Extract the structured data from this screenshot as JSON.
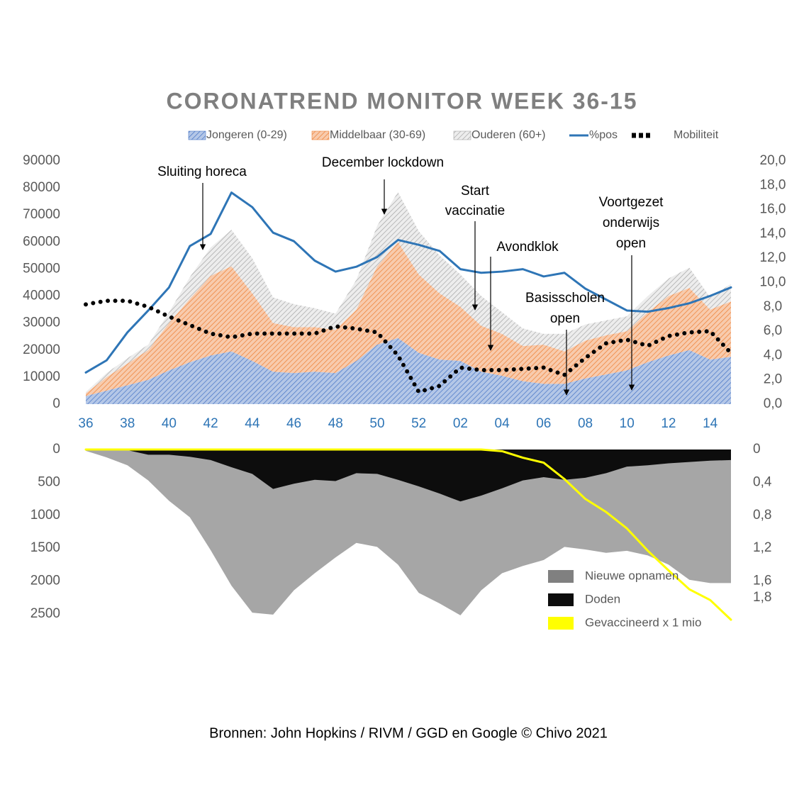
{
  "chart_data": [
    {
      "type": "area",
      "stacked": true,
      "title": "CORONATREND MONITOR WEEK 36-15",
      "source": "Bronnen: John Hopkins / RIVM / GGD en Google © Chivo 2021",
      "categories": [
        "36",
        null,
        "38",
        null,
        "40",
        null,
        "42",
        null,
        "44",
        null,
        "46",
        null,
        "48",
        null,
        "50",
        null,
        "52",
        null,
        "02",
        null,
        "04",
        null,
        "06",
        null,
        "08",
        null,
        "10",
        null,
        "12",
        null,
        "14",
        null
      ],
      "ylim": [
        0,
        90000
      ],
      "yticks": [
        0,
        10000,
        20000,
        30000,
        40000,
        50000,
        60000,
        70000,
        80000,
        90000
      ],
      "y2lim": [
        0,
        20
      ],
      "y2ticks": [
        {
          "value": 0,
          "label": "0,0"
        },
        {
          "value": 2,
          "label": "2,0"
        },
        {
          "value": 4,
          "label": "4,0"
        },
        {
          "value": 6,
          "label": "6,0"
        },
        {
          "value": 8,
          "label": "8,0"
        },
        {
          "value": 10,
          "label": "10,0"
        },
        {
          "value": 12,
          "label": "12,0"
        },
        {
          "value": 14,
          "label": "14,0"
        },
        {
          "value": 16,
          "label": "16,0"
        },
        {
          "value": 18,
          "label": "18,0"
        },
        {
          "value": 20,
          "label": "20,0"
        }
      ],
      "series": [
        {
          "name": "Jongeren (0-29)",
          "type": "area",
          "color": "#4472c4",
          "values": [
            3000,
            5000,
            7000,
            9000,
            12500,
            15500,
            18000,
            19500,
            16000,
            12000,
            11500,
            12000,
            11500,
            16000,
            22000,
            24500,
            19000,
            16500,
            16000,
            12000,
            10500,
            8500,
            7500,
            7500,
            9500,
            11000,
            12500,
            15500,
            18000,
            20000,
            16500,
            17500
          ]
        },
        {
          "name": "Middelbaar (30-69)",
          "type": "area",
          "color": "#ed7d31",
          "values": [
            1000,
            5000,
            8000,
            11000,
            17500,
            23500,
            29500,
            31500,
            25000,
            18000,
            17000,
            16500,
            16000,
            19000,
            29000,
            35500,
            29000,
            24500,
            20000,
            17000,
            15500,
            13000,
            14500,
            12000,
            14000,
            14500,
            14500,
            18500,
            22000,
            23000,
            18500,
            20500
          ]
        },
        {
          "name": "Ouderen (60+)",
          "type": "area",
          "color": "#a5a5a5",
          "values": [
            500,
            1500,
            2000,
            2000,
            4000,
            8000,
            10500,
            13500,
            13000,
            9500,
            8500,
            7000,
            6000,
            11000,
            15000,
            18500,
            16000,
            14000,
            12000,
            11000,
            8000,
            6500,
            4000,
            6500,
            6000,
            5500,
            5500,
            6000,
            6500,
            7500,
            4500,
            6500
          ]
        },
        {
          "name": "%pos",
          "type": "line",
          "axis": "y2",
          "color": "#2e75b6",
          "values": [
            2.6,
            3.6,
            5.9,
            7.7,
            9.6,
            13.0,
            14.0,
            17.4,
            16.2,
            14.1,
            13.4,
            11.8,
            10.9,
            11.3,
            12.1,
            13.5,
            13.1,
            12.6,
            11.1,
            10.8,
            10.9,
            11.1,
            10.5,
            10.8,
            9.5,
            8.6,
            7.7,
            7.6,
            7.9,
            8.3,
            8.9,
            9.6
          ]
        },
        {
          "name": "Mobiliteit",
          "type": "line",
          "axis": "y2",
          "style": "dotted",
          "color": "#000000",
          "values": [
            8.2,
            8.5,
            8.5,
            8.0,
            7.2,
            6.5,
            5.8,
            5.5,
            5.8,
            5.8,
            5.8,
            5.8,
            6.4,
            6.2,
            5.9,
            4.0,
            1.0,
            1.5,
            3.0,
            2.8,
            2.8,
            2.9,
            3.0,
            2.4,
            3.8,
            5.0,
            5.3,
            4.8,
            5.6,
            5.9,
            6.0,
            4.2
          ]
        }
      ],
      "annotations": [
        [
          "Sluiting horeca"
        ],
        [
          "December lockdown"
        ],
        [
          "Start",
          "vaccinatie"
        ],
        [
          "Avondklok"
        ],
        [
          "Basisscholen",
          "open"
        ],
        [
          "Voortgezet",
          "onderwijs",
          "open"
        ]
      ]
    },
    {
      "type": "area",
      "stacked": false,
      "inverted": true,
      "ylim": [
        0,
        2500
      ],
      "yticks": [
        0,
        500,
        1000,
        1500,
        2000,
        2500
      ],
      "y2lim": [
        0,
        2
      ],
      "y2ticks": [
        0,
        {
          "value": 0.4,
          "label": "0,4"
        },
        {
          "value": 0.8,
          "label": "0,8"
        },
        {
          "value": 1.2,
          "label": "1,2"
        },
        {
          "value": 1.6,
          "label": "1,6"
        },
        {
          "value": 1.8,
          "label": "1,8"
        }
      ],
      "series": [
        {
          "name": "Nieuwe opnamen",
          "type": "area",
          "color": "#a6a6a6",
          "values": [
            20,
            120,
            240,
            470,
            780,
            1030,
            1530,
            2070,
            2480,
            2510,
            2140,
            1880,
            1640,
            1420,
            1480,
            1750,
            2180,
            2340,
            2520,
            2140,
            1880,
            1770,
            1680,
            1480,
            1520,
            1570,
            1540,
            1610,
            1750,
            1980,
            2030,
            2030
          ]
        },
        {
          "name": "Doden",
          "type": "area",
          "color": "#0d0d0d",
          "values": [
            10,
            10,
            10,
            80,
            80,
            110,
            160,
            270,
            370,
            600,
            520,
            460,
            480,
            360,
            370,
            460,
            560,
            670,
            790,
            700,
            590,
            470,
            420,
            460,
            430,
            360,
            260,
            240,
            210,
            190,
            170,
            160
          ]
        },
        {
          "name": "Gevaccineerd  x 1 mio",
          "type": "line",
          "axis": "y2",
          "color": "#ffff00",
          "values": [
            0,
            0,
            0,
            0,
            0,
            0,
            0,
            0,
            0,
            0,
            0,
            0,
            0,
            0,
            0,
            0,
            0,
            0,
            0,
            0,
            0.02,
            0.1,
            0.16,
            0.36,
            0.6,
            0.76,
            0.96,
            1.23,
            1.47,
            1.7,
            1.83,
            2.07
          ]
        }
      ]
    }
  ]
}
